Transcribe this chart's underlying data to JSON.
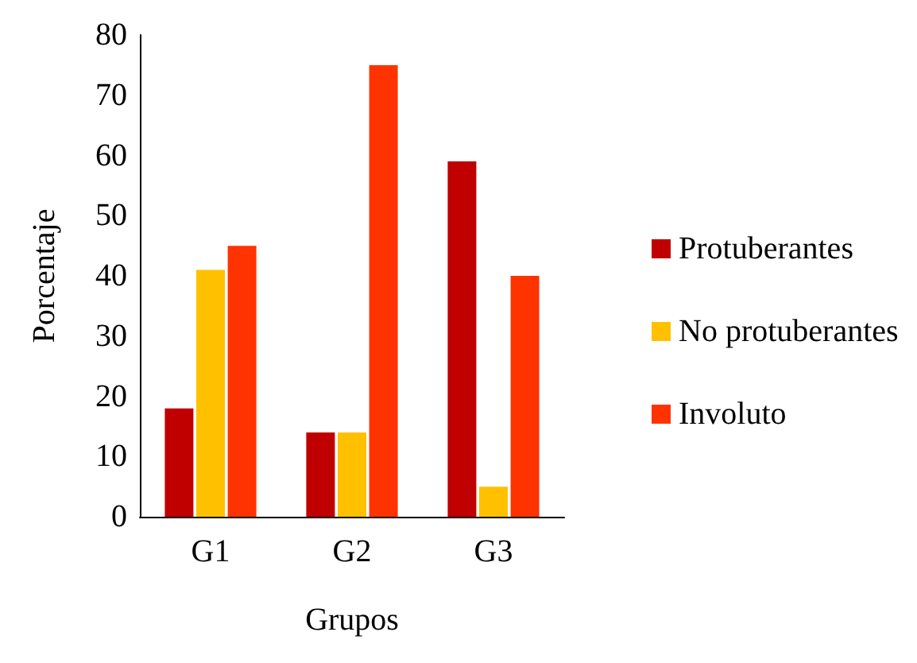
{
  "chart_data": {
    "type": "bar",
    "xlabel": "Grupos",
    "ylabel": "Porcentaje",
    "categories": [
      "G1",
      "G2",
      "G3"
    ],
    "series": [
      {
        "name": "Protuberantes",
        "color": "#c00000",
        "values": [
          18,
          14,
          59
        ]
      },
      {
        "name": "No protuberantes",
        "color": "#ffc000",
        "values": [
          41,
          14,
          5
        ]
      },
      {
        "name": "Involuto",
        "color": "#ff3300",
        "values": [
          45,
          75,
          40
        ]
      }
    ],
    "ylim": [
      0,
      80
    ],
    "yticks": [
      0,
      10,
      20,
      30,
      40,
      50,
      60,
      70,
      80
    ],
    "grid": false,
    "legend": "right"
  }
}
